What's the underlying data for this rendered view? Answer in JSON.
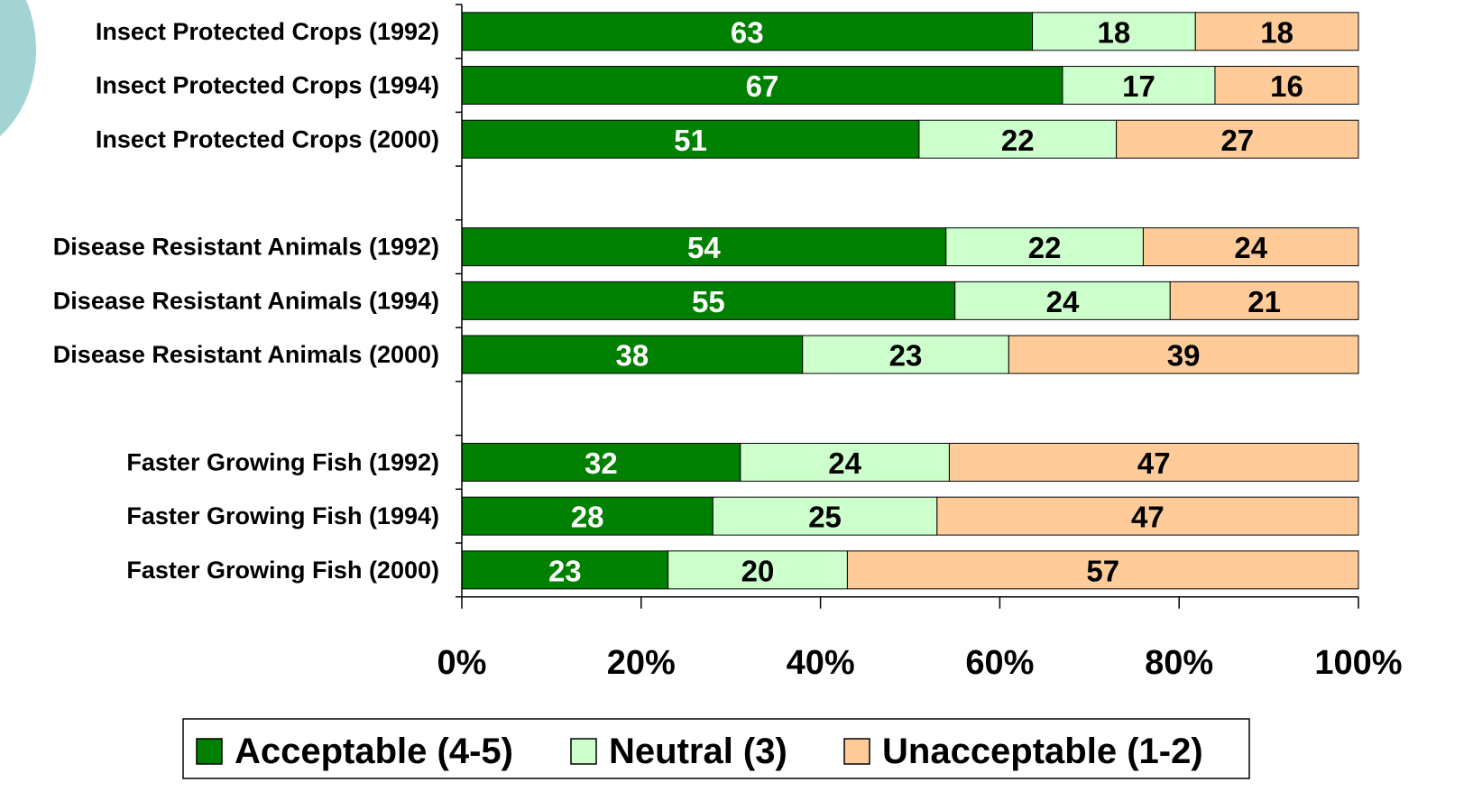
{
  "chart_data": {
    "type": "bar",
    "orientation": "horizontal",
    "stack": "percent",
    "categories": [
      "Insect Protected Crops (1992)",
      "Insect Protected Crops (1994)",
      "Insect Protected Crops (2000)",
      null,
      "Disease Resistant Animals (1992)",
      "Disease Resistant Animals (1994)",
      "Disease Resistant Animals (2000)",
      null,
      "Faster Growing Fish (1992)",
      "Faster Growing Fish (1994)",
      "Faster Growing Fish (2000)"
    ],
    "series": [
      {
        "name": "Acceptable (4-5)",
        "color": "#008000",
        "label_color": "#ffffff",
        "values": [
          63,
          67,
          51,
          null,
          54,
          55,
          38,
          null,
          32,
          28,
          23
        ]
      },
      {
        "name": "Neutral (3)",
        "color": "#ccffcc",
        "label_color": "#000000",
        "values": [
          18,
          17,
          22,
          null,
          22,
          24,
          23,
          null,
          24,
          25,
          20
        ]
      },
      {
        "name": "Unacceptable (1-2)",
        "color": "#ffcc99",
        "label_color": "#000000",
        "values": [
          18,
          16,
          27,
          null,
          24,
          21,
          39,
          null,
          47,
          47,
          57
        ]
      }
    ],
    "xlim": [
      0,
      100
    ],
    "xticks": [
      {
        "value": 0,
        "label": "0%"
      },
      {
        "value": 20,
        "label": "20%"
      },
      {
        "value": 40,
        "label": "40%"
      },
      {
        "value": 60,
        "label": "60%"
      },
      {
        "value": 80,
        "label": "80%"
      },
      {
        "value": 100,
        "label": "100%"
      }
    ],
    "legend": "bottom"
  }
}
